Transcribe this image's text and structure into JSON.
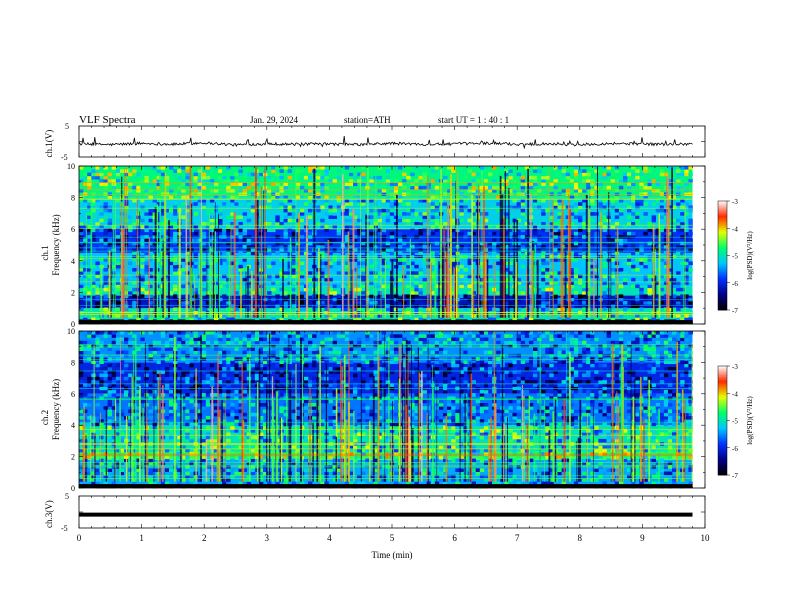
{
  "header": {
    "title": "VLF  Spectra",
    "date": "Jan. 29, 2024",
    "station": "station=ATH",
    "start_ut": "start  UT  =    1 : 40 : 1"
  },
  "colors": {
    "colormap": [
      "#000000",
      "#00008b",
      "#0033ff",
      "#00c8ff",
      "#00ff66",
      "#e6ff00",
      "#ff2a00",
      "#ffffff"
    ],
    "trace": "#000000"
  },
  "chart_data": [
    {
      "type": "line",
      "panel": "ch1-waveform",
      "ylabel": "ch.1(V)",
      "ylim": [
        -5,
        5
      ],
      "yticks": [
        "5",
        "-5"
      ],
      "xlim": [
        0,
        10
      ],
      "series": [
        {
          "values_description": null,
          "x": [
            0,
            0.5,
            1,
            1.5,
            2,
            2.5,
            3,
            3.5,
            4,
            4.5,
            5,
            5.5,
            6,
            6.5,
            7,
            7.5,
            8,
            8.5,
            9,
            9.5,
            9.8
          ],
          "y": [
            -0.8,
            -1.0,
            -0.6,
            -0.9,
            -0.4,
            -1.1,
            -0.7,
            -0.9,
            -0.8,
            -1.0,
            -0.6,
            -0.9,
            -0.8,
            -0.5,
            -0.9,
            -0.7,
            -1.0,
            -0.6,
            -0.8,
            -0.9,
            -0.7
          ]
        }
      ]
    },
    {
      "type": "heatmap",
      "panel": "ch1-spectrogram",
      "ylabel_top": "ch.1",
      "ylabel": "Frequency  (kHz)",
      "ylim": [
        0,
        10
      ],
      "yticks": [
        "0",
        "2",
        "4",
        "6",
        "8",
        "10"
      ],
      "xlim": [
        0,
        9.8
      ],
      "bands": [
        {
          "f_low": 0.0,
          "f_high": 0.3,
          "log_psd": -7.0
        },
        {
          "f_low": 0.3,
          "f_high": 1.0,
          "log_psd": -5.0
        },
        {
          "f_low": 1.0,
          "f_high": 1.8,
          "log_psd": -6.2
        },
        {
          "f_low": 1.8,
          "f_high": 2.4,
          "log_psd": -5.0
        },
        {
          "f_low": 2.4,
          "f_high": 4.5,
          "log_psd": -5.3
        },
        {
          "f_low": 4.5,
          "f_high": 6.0,
          "log_psd": -5.9
        },
        {
          "f_low": 6.0,
          "f_high": 8.0,
          "log_psd": -5.2
        },
        {
          "f_low": 8.0,
          "f_high": 10.0,
          "log_psd": -4.8
        }
      ],
      "colorbar": {
        "label": "log(PSD)(V²/Hz)",
        "ticks": [
          "-3",
          "-4",
          "-5",
          "-6",
          "-7"
        ],
        "range": [
          -7,
          -3
        ]
      }
    },
    {
      "type": "heatmap",
      "panel": "ch2-spectrogram",
      "ylabel_top": "ch.2",
      "ylabel": "Frequency  (kHz)",
      "ylim": [
        0,
        10
      ],
      "yticks": [
        "0",
        "2",
        "4",
        "6",
        "8",
        "10"
      ],
      "xlim": [
        0,
        9.8
      ],
      "bands": [
        {
          "f_low": 0.0,
          "f_high": 0.2,
          "log_psd": -7.0
        },
        {
          "f_low": 0.2,
          "f_high": 1.8,
          "log_psd": -5.4
        },
        {
          "f_low": 1.8,
          "f_high": 2.3,
          "log_psd": -4.6
        },
        {
          "f_low": 2.3,
          "f_high": 4.0,
          "log_psd": -5.0
        },
        {
          "f_low": 4.0,
          "f_high": 6.0,
          "log_psd": -5.6
        },
        {
          "f_low": 6.0,
          "f_high": 8.0,
          "log_psd": -6.0
        },
        {
          "f_low": 8.0,
          "f_high": 10.0,
          "log_psd": -5.5
        }
      ],
      "colorbar": {
        "label": "log(PSD)(V²/Hz)",
        "ticks": [
          "-3",
          "-4",
          "-5",
          "-6",
          "-7"
        ],
        "range": [
          -7,
          -3
        ]
      }
    },
    {
      "type": "line",
      "panel": "ch3-waveform",
      "ylabel": "ch.3(V)",
      "ylim": [
        -5,
        5
      ],
      "yticks": [
        "5",
        "-5"
      ],
      "xlim": [
        0,
        10
      ],
      "xlabel": "Time  (min)",
      "xticks": [
        "0",
        "1",
        "2",
        "3",
        "4",
        "5",
        "6",
        "7",
        "8",
        "9",
        "10"
      ],
      "series": [
        {
          "x": [
            0,
            9.8
          ],
          "y": [
            -0.8,
            -0.8
          ]
        }
      ]
    }
  ]
}
